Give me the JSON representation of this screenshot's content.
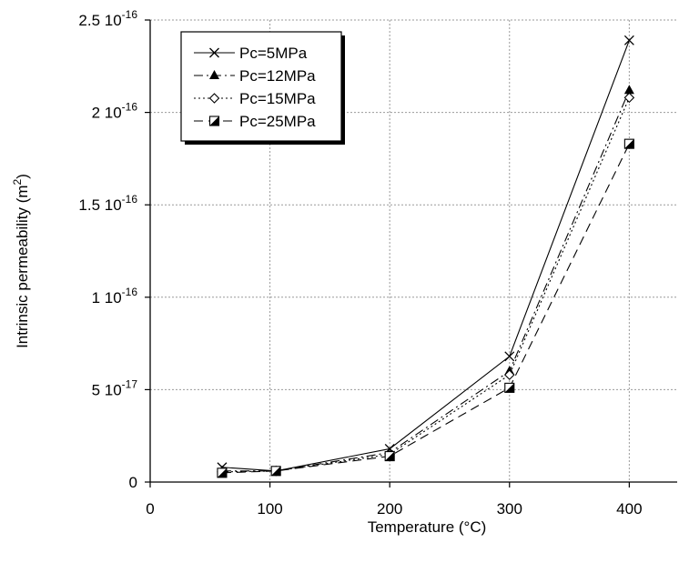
{
  "chart_data": {
    "type": "line",
    "title": "",
    "xlabel": "Temperature (°C)",
    "ylabel_main": "Intrinsic permeability (m",
    "ylabel_sup": "2",
    "ylabel_close": ")",
    "xlim": [
      0,
      440
    ],
    "ylim": [
      0,
      2.5e-16
    ],
    "x_ticks": [
      {
        "value": 0,
        "label": "0"
      },
      {
        "value": 100,
        "label": "100"
      },
      {
        "value": 200,
        "label": "200"
      },
      {
        "value": 300,
        "label": "300"
      },
      {
        "value": 400,
        "label": "400"
      }
    ],
    "y_ticks": [
      {
        "value": 0,
        "mant": "0",
        "exp": ""
      },
      {
        "value": 5e-17,
        "mant": "5 10",
        "exp": "-17"
      },
      {
        "value": 1e-16,
        "mant": "1 10",
        "exp": "-16"
      },
      {
        "value": 1.5e-16,
        "mant": "1.5 10",
        "exp": "-16"
      },
      {
        "value": 2e-16,
        "mant": "2 10",
        "exp": "-16"
      },
      {
        "value": 2.5e-16,
        "mant": "2.5 10",
        "exp": "-16"
      }
    ],
    "grid": true,
    "legend_position": "top-left",
    "series": [
      {
        "name": "Pc=5MPa",
        "marker": "cross",
        "dash": "solid",
        "x": [
          60,
          105,
          200,
          300,
          400
        ],
        "y": [
          8e-18,
          6e-18,
          1.8e-17,
          6.8e-17,
          2.39e-16
        ]
      },
      {
        "name": "Pc=12MPa",
        "marker": "triangle",
        "dash": "dashdot",
        "x": [
          60,
          105,
          200,
          300,
          400
        ],
        "y": [
          6e-18,
          6e-18,
          1.6e-17,
          6e-17,
          2.12e-16
        ]
      },
      {
        "name": "Pc=15MPa",
        "marker": "diamond",
        "dash": "dotted",
        "x": [
          60,
          105,
          200,
          300,
          400
        ],
        "y": [
          5.5e-18,
          6e-18,
          1.5e-17,
          5.8e-17,
          2.08e-16
        ]
      },
      {
        "name": "Pc=25MPa",
        "marker": "halfsquare",
        "dash": "dashed",
        "x": [
          60,
          105,
          200,
          300,
          400
        ],
        "y": [
          5e-18,
          6e-18,
          1.4e-17,
          5.1e-17,
          1.83e-16
        ]
      }
    ]
  }
}
